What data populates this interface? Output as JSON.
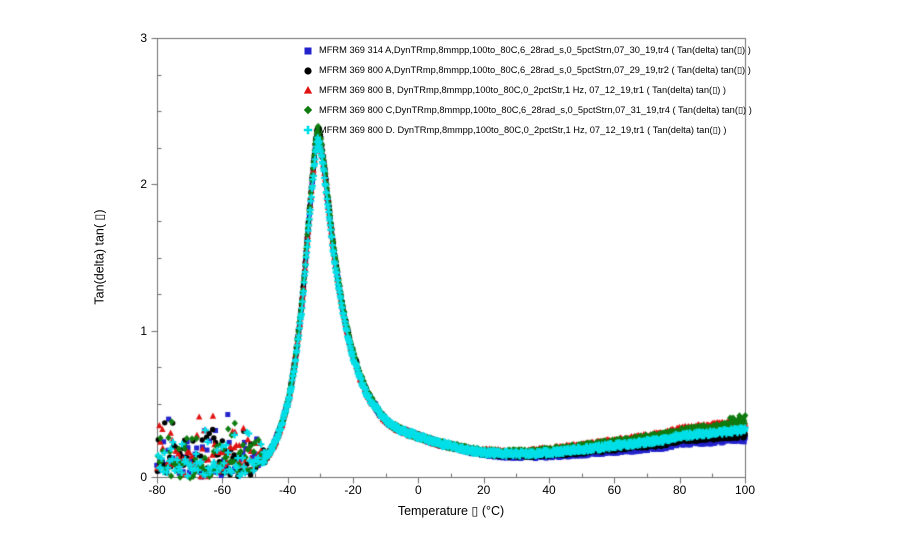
{
  "figure": {
    "background": "#ffffff"
  },
  "chart_data": {
    "type": "scatter",
    "title": "",
    "xlabel": "Temperature ▯  (°C)",
    "ylabel": "Tan(delta) tan( ▯)",
    "xlim": [
      -80,
      100
    ],
    "ylim": [
      0,
      3
    ],
    "x_major_ticks": [
      -80,
      -60,
      -40,
      -20,
      0,
      20,
      40,
      60,
      80,
      100
    ],
    "x_minor_step": 10,
    "y_major_ticks": [
      0,
      1,
      2,
      3
    ],
    "y_minor_step": 0.25,
    "grid": false,
    "legend_position": "top-center-inside",
    "axis_color": "#6e6e6e",
    "peak": {
      "temperature_c": -31,
      "tan_delta": 2.4
    },
    "series": [
      {
        "label": "MFRM 369 314 A,DynTRmp,8mmpp,100to_80C,6_28rad_s,0_5pctStrn,07_30_19,tr4 ( Tan(delta) tan(▯)  )",
        "marker": "square",
        "color": "#2323cc",
        "peak_scale": 0.99,
        "high_temp_offset": -0.065,
        "end_flare": 0
      },
      {
        "label": "MFRM 369 800 A,DynTRmp,8mmpp,100to_80C,6_28rad_s,0_5pctStrn,07_29_19,tr2 ( Tan(delta) tan(▯)  )",
        "marker": "circle",
        "color": "#000000",
        "peak_scale": 1.005,
        "high_temp_offset": -0.035,
        "end_flare": 0
      },
      {
        "label": "MFRM 369 800 B, DynTRmp,8mmpp,100to_80C,0_2pctStr,1 Hz, 07_12_19,tr1 ( Tan(delta) tan(▯)  )",
        "marker": "triangle",
        "color": "#e01212",
        "peak_scale": 0.985,
        "high_temp_offset": 0.055,
        "end_flare": 0
      },
      {
        "label": "MFRM 369 800 C,DynTRmp,8mmpp,100to_80C,6_28rad_s,0_5pctStrn,07_31_19,tr4 ( Tan(delta) tan(▯)  )",
        "marker": "diamond",
        "color": "#107c10",
        "peak_scale": 1.005,
        "high_temp_offset": 0.045,
        "end_flare": 0.05
      },
      {
        "label": "MFRM 369 800 D. DynTRmp,8mmpp,100to_80C,0_2pctStr,1 Hz, 07_12_19,tr1 ( Tan(delta) tan(▯)  )",
        "marker": "plus",
        "color": "#00dfe8",
        "peak_scale": 0.97,
        "high_temp_offset": 0.0,
        "end_flare": 0
      }
    ],
    "master_curve": [
      [
        -52,
        0.09
      ],
      [
        -50,
        0.1
      ],
      [
        -48,
        0.12
      ],
      [
        -46,
        0.16
      ],
      [
        -44,
        0.24
      ],
      [
        -42,
        0.36
      ],
      [
        -40,
        0.52
      ],
      [
        -38,
        0.78
      ],
      [
        -36,
        1.15
      ],
      [
        -35,
        1.4
      ],
      [
        -34,
        1.68
      ],
      [
        -33,
        1.95
      ],
      [
        -32,
        2.2
      ],
      [
        -31.5,
        2.32
      ],
      [
        -31,
        2.38
      ],
      [
        -30.5,
        2.36
      ],
      [
        -30,
        2.3
      ],
      [
        -29,
        2.14
      ],
      [
        -28,
        1.94
      ],
      [
        -27,
        1.74
      ],
      [
        -26,
        1.56
      ],
      [
        -25,
        1.4
      ],
      [
        -24,
        1.26
      ],
      [
        -23,
        1.13
      ],
      [
        -22,
        1.02
      ],
      [
        -21,
        0.92
      ],
      [
        -20,
        0.84
      ],
      [
        -18,
        0.7
      ],
      [
        -16,
        0.59
      ],
      [
        -14,
        0.51
      ],
      [
        -12,
        0.44
      ],
      [
        -10,
        0.39
      ],
      [
        -8,
        0.355
      ],
      [
        -6,
        0.33
      ],
      [
        -4,
        0.31
      ],
      [
        -2,
        0.295
      ],
      [
        0,
        0.28
      ],
      [
        2,
        0.265
      ],
      [
        4,
        0.25
      ],
      [
        6,
        0.235
      ],
      [
        8,
        0.225
      ],
      [
        10,
        0.215
      ],
      [
        12,
        0.205
      ],
      [
        14,
        0.195
      ],
      [
        16,
        0.185
      ],
      [
        18,
        0.178
      ],
      [
        20,
        0.172
      ],
      [
        24,
        0.165
      ],
      [
        28,
        0.162
      ],
      [
        32,
        0.162
      ],
      [
        36,
        0.166
      ],
      [
        40,
        0.172
      ],
      [
        45,
        0.182
      ],
      [
        50,
        0.193
      ],
      [
        55,
        0.205
      ],
      [
        60,
        0.218
      ],
      [
        65,
        0.231
      ],
      [
        70,
        0.244
      ],
      [
        75,
        0.257
      ],
      [
        80,
        0.285
      ],
      [
        85,
        0.295
      ],
      [
        90,
        0.305
      ],
      [
        95,
        0.315
      ],
      [
        100,
        0.325
      ]
    ],
    "noise": {
      "t_end": -48,
      "blend_width": 6,
      "amplitude": 0.42,
      "base": 0.05
    },
    "sample_step_c": 0.16,
    "noise_step_c": 0.45,
    "jitter": 0.018
  }
}
